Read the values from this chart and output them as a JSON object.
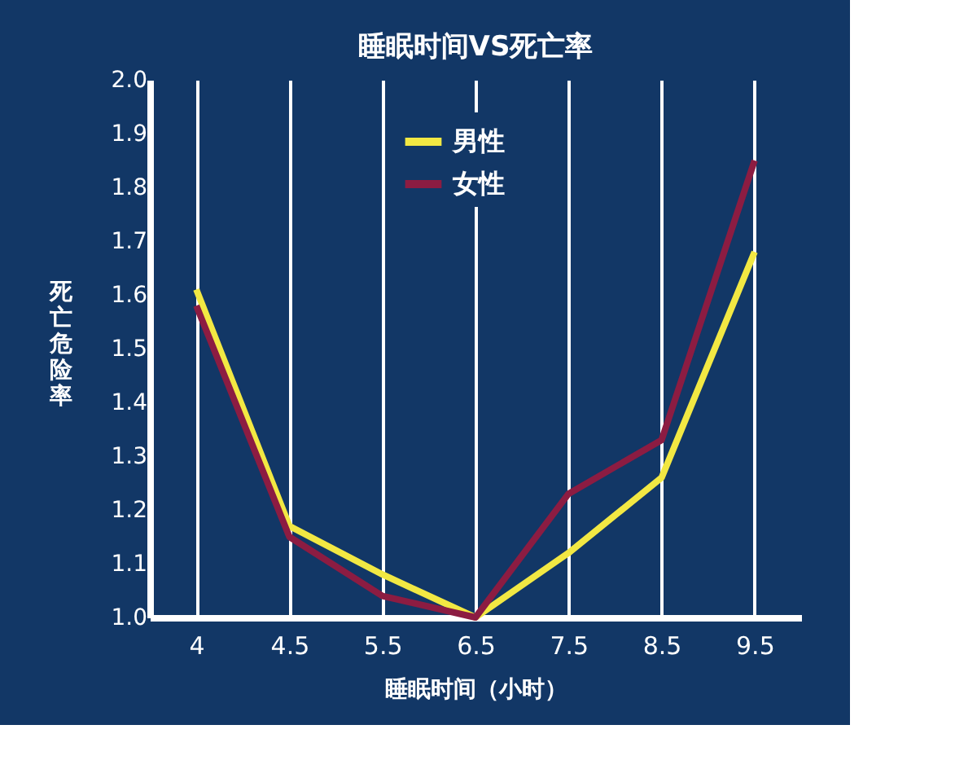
{
  "chart_data": {
    "type": "line",
    "title": "睡眠时间VS死亡率",
    "xlabel": "睡眠时间（小时）",
    "ylabel": "死亡危险率",
    "categories": [
      "4",
      "4.5",
      "5.5",
      "6.5",
      "7.5",
      "8.5",
      "9.5"
    ],
    "series": [
      {
        "name": "男性",
        "color": "#f2e843",
        "values": [
          1.61,
          1.17,
          1.08,
          1.0,
          1.12,
          1.26,
          1.68
        ]
      },
      {
        "name": "女性",
        "color": "#8c1c42",
        "values": [
          1.58,
          1.15,
          1.04,
          1.0,
          1.23,
          1.33,
          1.85
        ]
      }
    ],
    "ylim": [
      1.0,
      2.0
    ],
    "yticks": [
      {
        "value": 1,
        "label": "1.0"
      },
      1.1,
      1.2,
      1.3,
      1.4,
      1.5,
      1.6,
      1.7,
      1.8,
      1.9,
      {
        "value": 2,
        "label": "2.0"
      }
    ],
    "grid": "x",
    "legend": "top",
    "marker": "none",
    "line_style": "solid"
  }
}
